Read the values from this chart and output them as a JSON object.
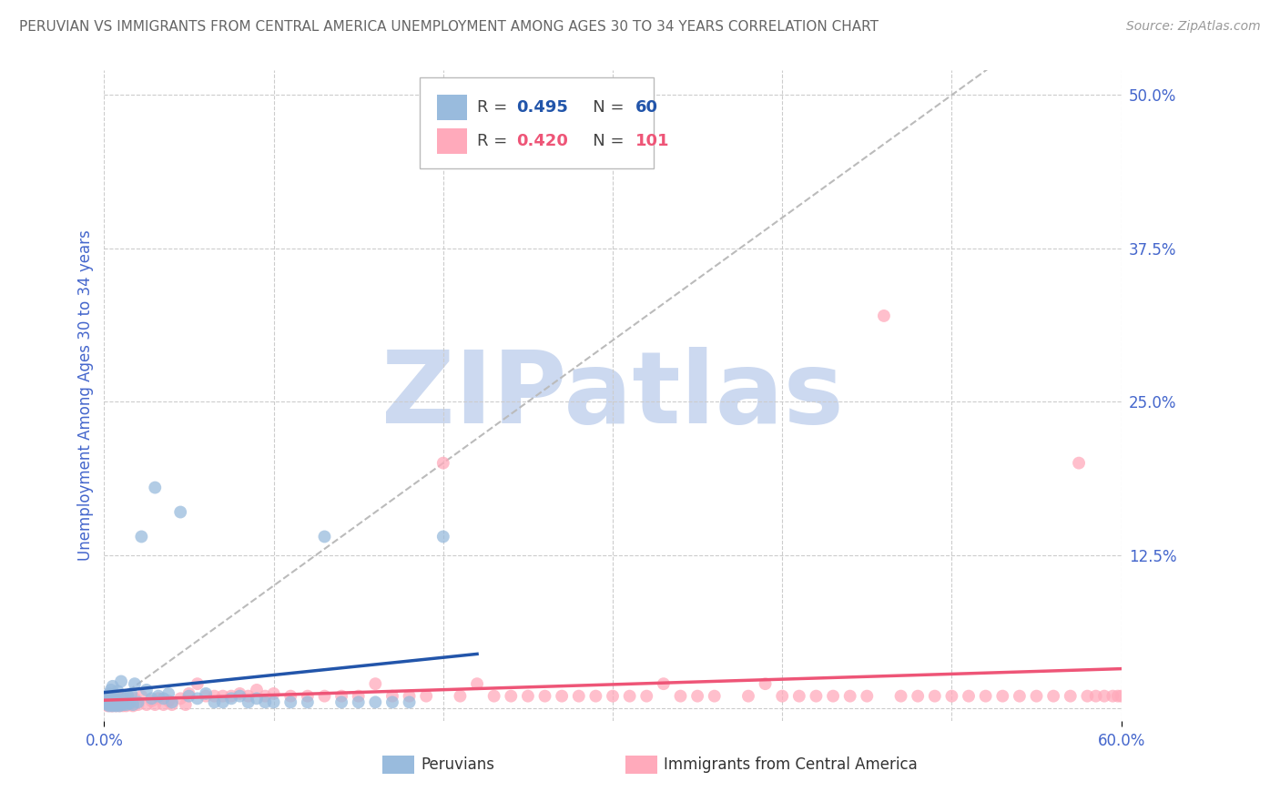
{
  "title": "PERUVIAN VS IMMIGRANTS FROM CENTRAL AMERICA UNEMPLOYMENT AMONG AGES 30 TO 34 YEARS CORRELATION CHART",
  "source": "Source: ZipAtlas.com",
  "ylabel": "Unemployment Among Ages 30 to 34 years",
  "xlim": [
    0.0,
    0.6
  ],
  "ylim": [
    -0.01,
    0.52
  ],
  "yticks_right": [
    0.0,
    0.125,
    0.25,
    0.375,
    0.5
  ],
  "ytick_labels_right": [
    "",
    "12.5%",
    "25.0%",
    "37.5%",
    "50.0%"
  ],
  "grid_color": "#cccccc",
  "background_color": "#ffffff",
  "watermark_text": "ZIPatlas",
  "watermark_color": "#ccd9f0",
  "blue_color": "#99bbdd",
  "blue_line_color": "#2255aa",
  "pink_color": "#ffaabb",
  "pink_line_color": "#ee5577",
  "axis_label_color": "#4466cc",
  "title_color": "#666666",
  "ref_line_color": "#bbbbbb",
  "blue_x": [
    0.001,
    0.001,
    0.002,
    0.002,
    0.003,
    0.003,
    0.003,
    0.004,
    0.004,
    0.004,
    0.005,
    0.005,
    0.005,
    0.006,
    0.006,
    0.007,
    0.007,
    0.008,
    0.008,
    0.009,
    0.01,
    0.01,
    0.011,
    0.012,
    0.013,
    0.014,
    0.015,
    0.016,
    0.017,
    0.018,
    0.02,
    0.022,
    0.025,
    0.028,
    0.03,
    0.032,
    0.035,
    0.038,
    0.04,
    0.045,
    0.05,
    0.055,
    0.06,
    0.065,
    0.07,
    0.075,
    0.08,
    0.085,
    0.09,
    0.095,
    0.1,
    0.11,
    0.12,
    0.13,
    0.14,
    0.15,
    0.16,
    0.17,
    0.18,
    0.2
  ],
  "blue_y": [
    0.005,
    0.008,
    0.003,
    0.01,
    0.002,
    0.006,
    0.012,
    0.003,
    0.008,
    0.015,
    0.002,
    0.005,
    0.018,
    0.003,
    0.01,
    0.002,
    0.007,
    0.003,
    0.014,
    0.002,
    0.004,
    0.022,
    0.003,
    0.008,
    0.003,
    0.01,
    0.004,
    0.012,
    0.003,
    0.02,
    0.005,
    0.14,
    0.015,
    0.008,
    0.18,
    0.01,
    0.008,
    0.012,
    0.005,
    0.16,
    0.01,
    0.008,
    0.012,
    0.005,
    0.005,
    0.008,
    0.01,
    0.005,
    0.008,
    0.005,
    0.005,
    0.005,
    0.005,
    0.14,
    0.005,
    0.005,
    0.005,
    0.005,
    0.005,
    0.14
  ],
  "pink_x": [
    0.001,
    0.001,
    0.002,
    0.002,
    0.003,
    0.003,
    0.004,
    0.004,
    0.005,
    0.005,
    0.006,
    0.006,
    0.007,
    0.008,
    0.008,
    0.009,
    0.01,
    0.01,
    0.011,
    0.012,
    0.013,
    0.014,
    0.015,
    0.016,
    0.017,
    0.018,
    0.02,
    0.022,
    0.025,
    0.028,
    0.03,
    0.032,
    0.035,
    0.038,
    0.04,
    0.045,
    0.048,
    0.05,
    0.055,
    0.06,
    0.065,
    0.07,
    0.075,
    0.08,
    0.085,
    0.09,
    0.095,
    0.1,
    0.11,
    0.12,
    0.13,
    0.14,
    0.15,
    0.16,
    0.17,
    0.18,
    0.19,
    0.2,
    0.21,
    0.22,
    0.23,
    0.24,
    0.25,
    0.26,
    0.27,
    0.28,
    0.29,
    0.3,
    0.31,
    0.32,
    0.33,
    0.34,
    0.35,
    0.36,
    0.38,
    0.39,
    0.4,
    0.41,
    0.42,
    0.43,
    0.44,
    0.45,
    0.46,
    0.47,
    0.48,
    0.49,
    0.5,
    0.51,
    0.52,
    0.53,
    0.54,
    0.55,
    0.56,
    0.57,
    0.575,
    0.58,
    0.585,
    0.59,
    0.595,
    0.598,
    0.6
  ],
  "pink_y": [
    0.003,
    0.006,
    0.002,
    0.008,
    0.003,
    0.01,
    0.002,
    0.006,
    0.002,
    0.009,
    0.003,
    0.007,
    0.002,
    0.004,
    0.01,
    0.002,
    0.003,
    0.008,
    0.002,
    0.006,
    0.002,
    0.008,
    0.003,
    0.005,
    0.002,
    0.008,
    0.003,
    0.01,
    0.003,
    0.006,
    0.003,
    0.008,
    0.003,
    0.006,
    0.003,
    0.008,
    0.003,
    0.012,
    0.02,
    0.01,
    0.01,
    0.01,
    0.01,
    0.012,
    0.01,
    0.015,
    0.01,
    0.012,
    0.01,
    0.01,
    0.01,
    0.01,
    0.01,
    0.02,
    0.01,
    0.01,
    0.01,
    0.2,
    0.01,
    0.02,
    0.01,
    0.01,
    0.01,
    0.01,
    0.01,
    0.01,
    0.01,
    0.01,
    0.01,
    0.01,
    0.02,
    0.01,
    0.01,
    0.01,
    0.01,
    0.02,
    0.01,
    0.01,
    0.01,
    0.01,
    0.01,
    0.01,
    0.32,
    0.01,
    0.01,
    0.01,
    0.01,
    0.01,
    0.01,
    0.01,
    0.01,
    0.01,
    0.01,
    0.01,
    0.2,
    0.01,
    0.01,
    0.01,
    0.01,
    0.01,
    0.01
  ]
}
